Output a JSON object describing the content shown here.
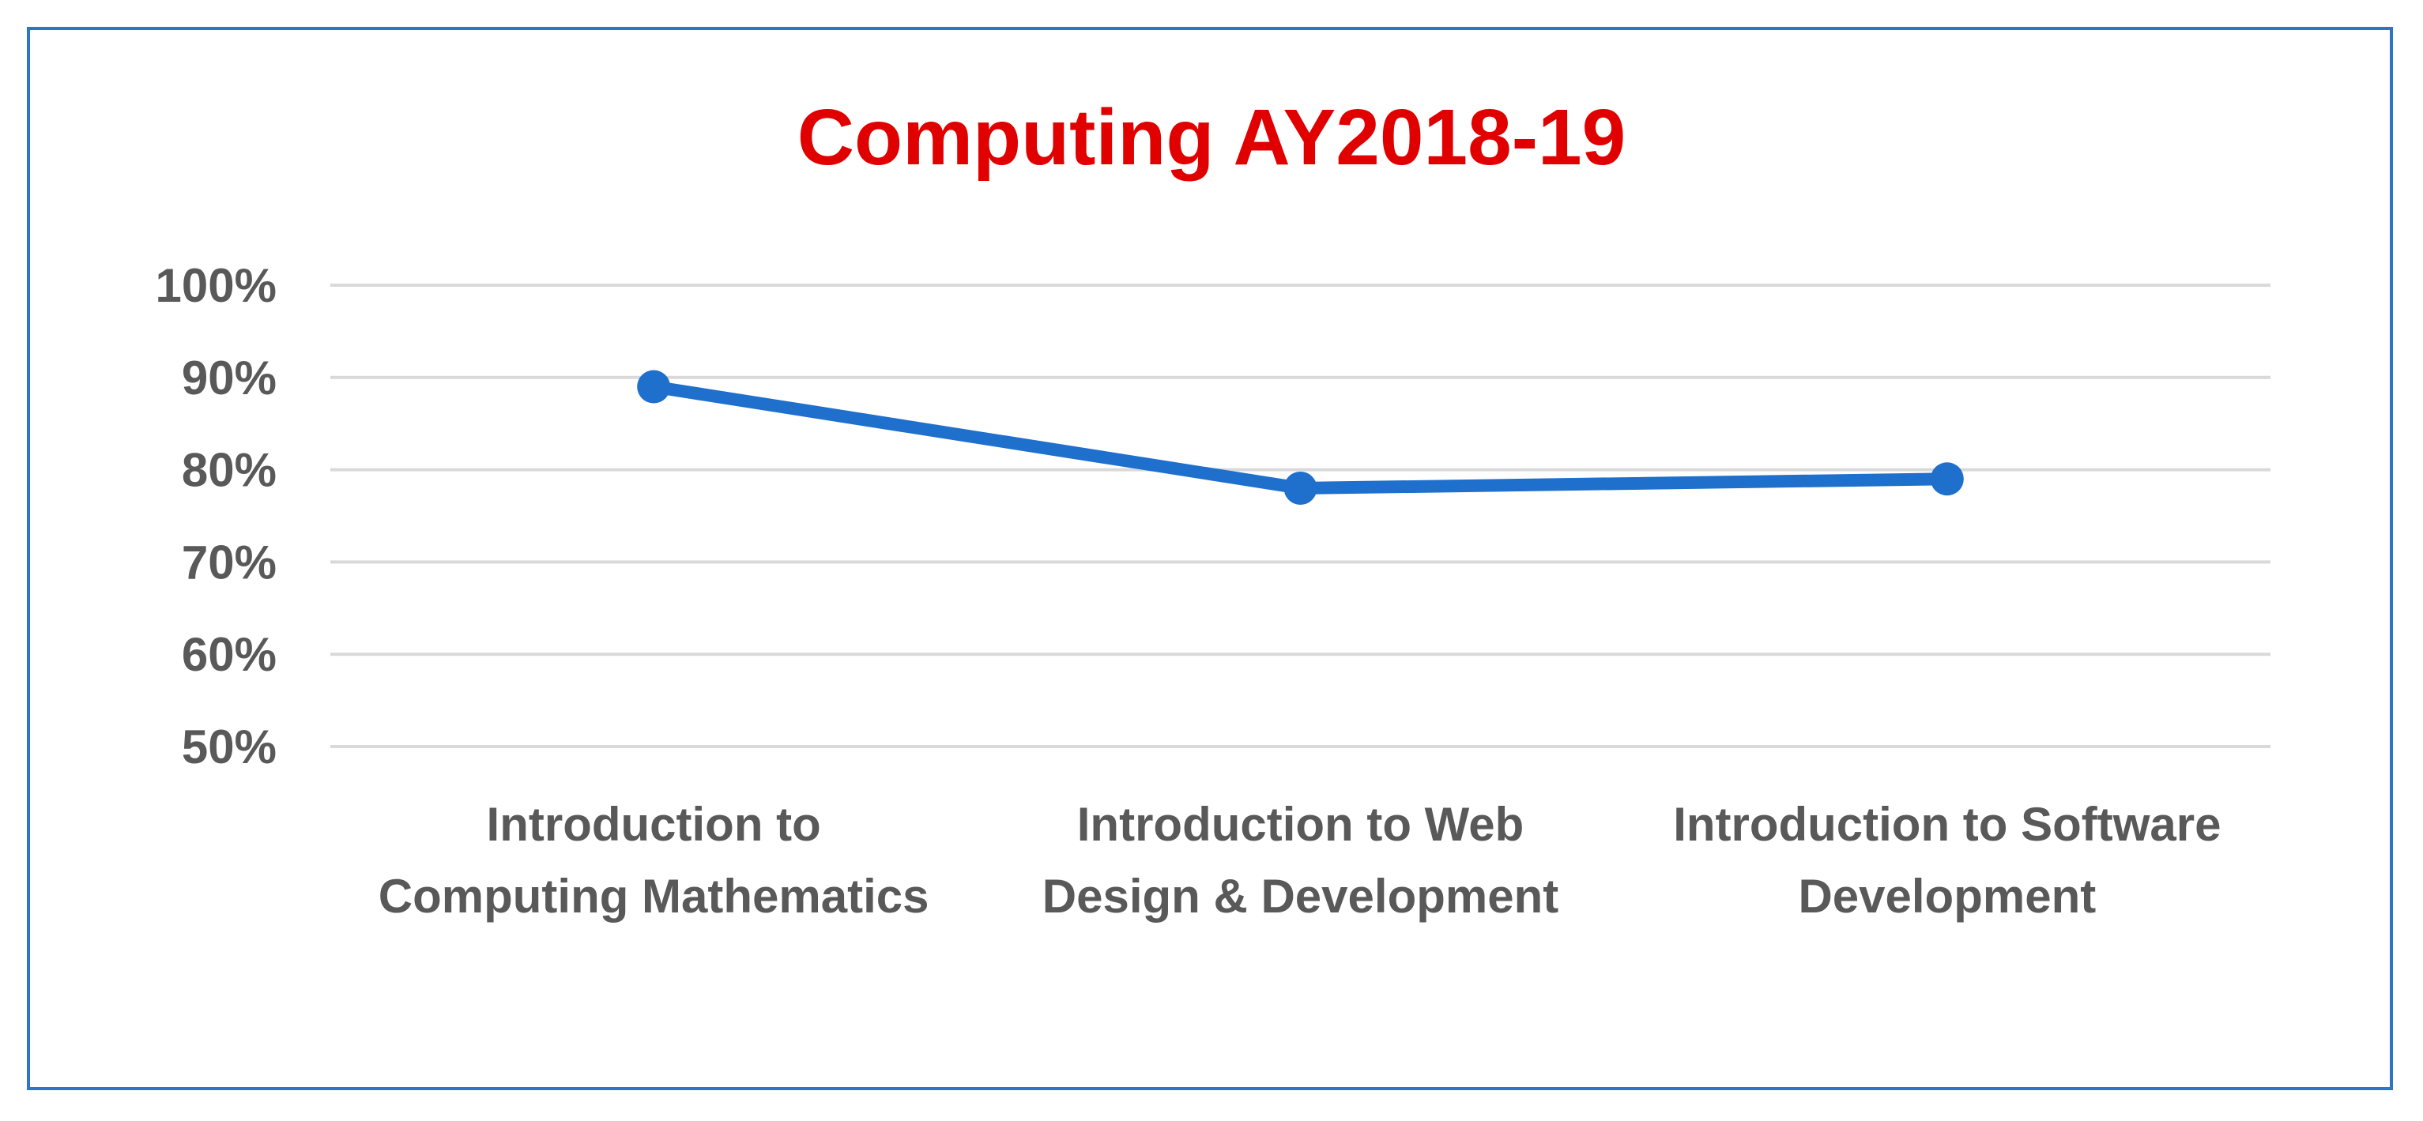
{
  "chart_data": {
    "type": "line",
    "title": "Computing AY2018-19",
    "xlabel": "",
    "ylabel": "",
    "categories": [
      [
        "Introduction to",
        "Computing Mathematics"
      ],
      [
        "Introduction to Web",
        "Design & Development"
      ],
      [
        "Introduction to Software",
        "Development"
      ]
    ],
    "series": [
      {
        "values": [
          0.89,
          0.78,
          0.79
        ]
      }
    ],
    "ylim": [
      0.5,
      1.0
    ],
    "yticks": [
      "50%",
      "60%",
      "70%",
      "80%",
      "90%",
      "100%"
    ],
    "ytick_values": [
      0.5,
      0.6,
      0.7,
      0.8,
      0.9,
      1.0
    ],
    "grid": true,
    "legend": "none",
    "colors": {
      "title": "#e00000",
      "line": "#1f6fcc",
      "grid": "#d9d9d9",
      "text": "#595959",
      "frame": "#2e75c8"
    }
  }
}
